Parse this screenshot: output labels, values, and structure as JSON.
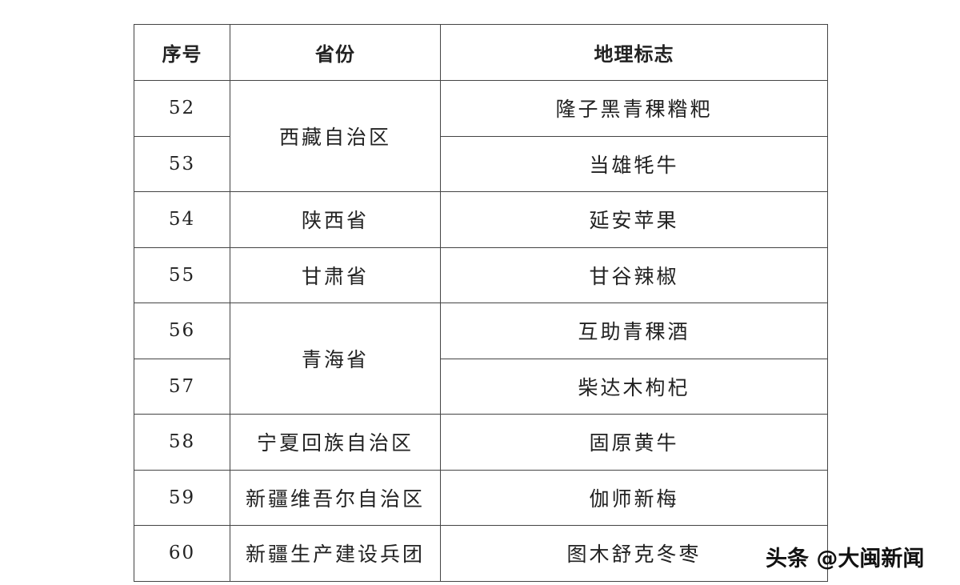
{
  "table": {
    "headers": [
      "序号",
      "省份",
      "地理标志"
    ],
    "rows": [
      {
        "no": "52",
        "province": "西藏自治区",
        "gi": "隆子黑青稞糌粑"
      },
      {
        "no": "53",
        "province": "西藏自治区",
        "gi": "当雄牦牛"
      },
      {
        "no": "54",
        "province": "陕西省",
        "gi": "延安苹果"
      },
      {
        "no": "55",
        "province": "甘肃省",
        "gi": "甘谷辣椒"
      },
      {
        "no": "56",
        "province": "青海省",
        "gi": "互助青稞酒"
      },
      {
        "no": "57",
        "province": "青海省",
        "gi": "柴达木枸杞"
      },
      {
        "no": "58",
        "province": "宁夏回族自治区",
        "gi": "固原黄牛"
      },
      {
        "no": "59",
        "province": "新疆维吾尔自治区",
        "gi": "伽师新梅"
      },
      {
        "no": "60",
        "province": "新疆生产建设兵团",
        "gi": "图木舒克冬枣"
      }
    ]
  },
  "watermark": "头条 @大闽新闻"
}
